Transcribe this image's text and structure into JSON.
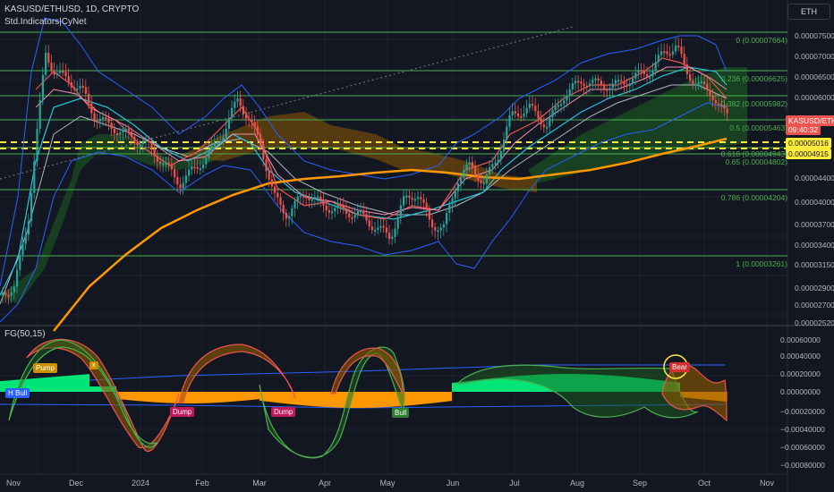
{
  "header": {
    "title": "KASUSD/ETHUSD, 1D, CRYPTO",
    "indicator": "Std.Indicators|CyNet",
    "sub_indicator": "FG(50,15)"
  },
  "currency_button": "ETH",
  "price_axis": {
    "ticks": [
      "0.00007500",
      "0.00007000",
      "0.00006500",
      "0.00006000",
      "0.00005510",
      "0.00005200",
      "0.00004400",
      "0.00004000",
      "0.00003700",
      "0.00003400",
      "0.00003150",
      "0.00002900",
      "0.00002700",
      "0.00002520"
    ],
    "current_label": "KASUSD/ETHUSD",
    "current_price": "0.00005510",
    "countdown": "09:40:32",
    "yellow_tags": [
      "0.00005016",
      "0.00004915"
    ]
  },
  "fib_levels": [
    {
      "text": "0 (0.00007664)"
    },
    {
      "text": "0.236 (0.00006625)"
    },
    {
      "text": "0.382 (0.00005982)"
    },
    {
      "text": "0.5 (0.00005463)"
    },
    {
      "text": "0.618 (0.00004943)"
    },
    {
      "text": "0.65 (0.00004802)"
    },
    {
      "text": "0.786 (0.00004204)"
    },
    {
      "text": "1 (0.00003261)"
    }
  ],
  "osc_axis": {
    "ticks": [
      "0.00060000",
      "0.00040000",
      "0.00020000",
      "0.00000000",
      "−0.00020000",
      "−0.00040000",
      "−0.00060000",
      "−0.00080000"
    ]
  },
  "time_axis": {
    "labels": [
      "Nov",
      "Dec",
      "2024",
      "Feb",
      "Mar",
      "Apr",
      "May",
      "Jun",
      "Jul",
      "Aug",
      "Sep",
      "Oct",
      "Nov"
    ]
  },
  "signals": {
    "pump": "Pump",
    "h_bull": "H Bull",
    "dump1": "Dump",
    "dump2": "Dump",
    "bull": "Bull",
    "bear": "Bear",
    "x_mark": "x"
  },
  "colors": {
    "background": "#131722",
    "fib_line": "#4caf50",
    "ema_orange": "#ff9800",
    "bb_blue": "#2962ff",
    "up": "#26a69a",
    "down": "#ef5350",
    "osc_green": "#00e676",
    "osc_orange": "#ff9800",
    "yellow": "#ffeb3b"
  }
}
